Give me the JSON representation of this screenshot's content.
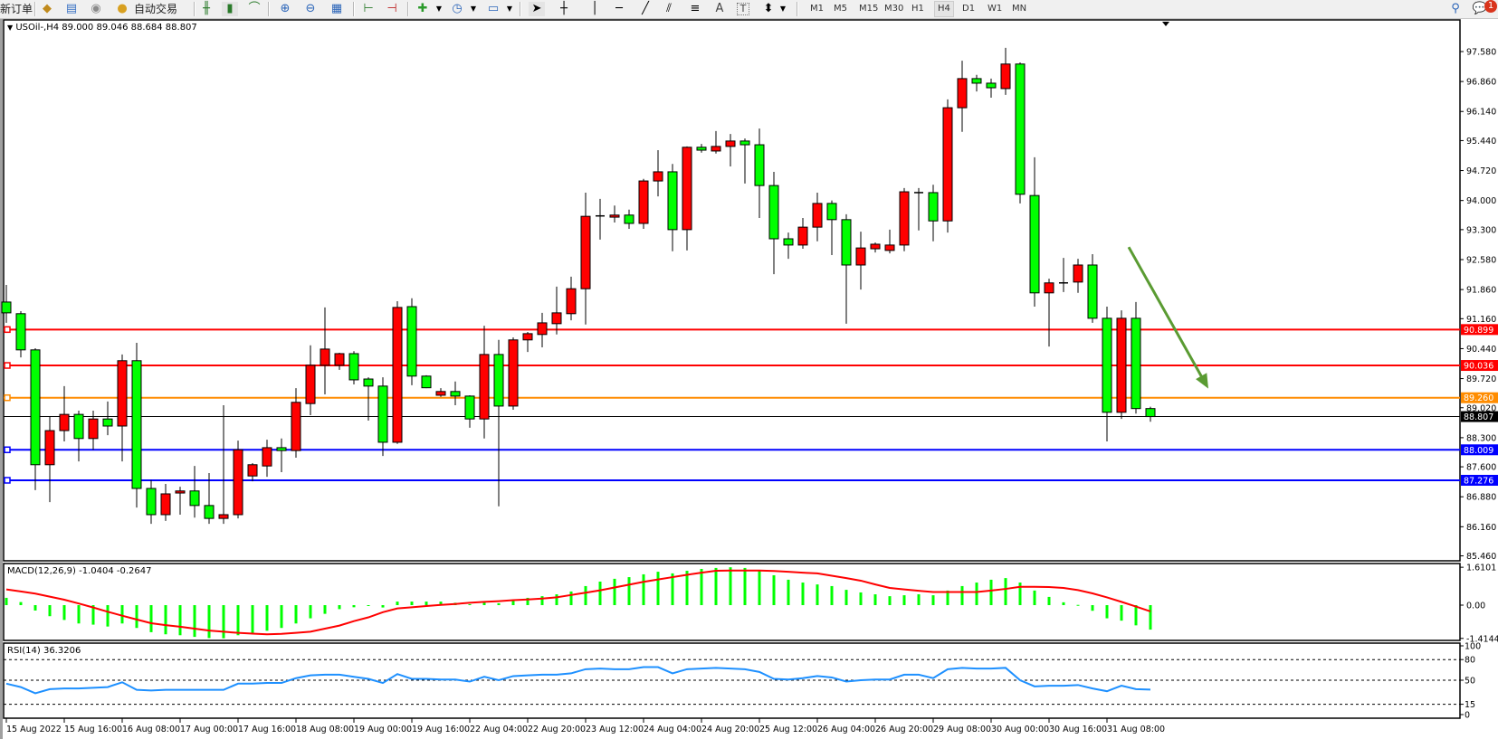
{
  "toolbar": {
    "new_order": "新订单",
    "auto_trading": "自动交易",
    "icons": [
      "market-watch-icon",
      "navigator-icon",
      "signals-icon",
      "auto-trading-icon",
      "bar-chart-icon",
      "candlestick-icon",
      "line-chart-icon",
      "zoom-in-icon",
      "zoom-out-icon",
      "tile-windows-icon",
      "chart-shift-icon",
      "autoscroll-icon",
      "indicators-icon",
      "periods-icon",
      "templates-icon",
      "cursor-icon",
      "crosshair-icon",
      "vertical-line-icon",
      "horizontal-line-icon",
      "trendline-icon",
      "equidistant-channel-icon",
      "fibonacci-icon",
      "text-icon",
      "text-label-icon",
      "arrows-icon"
    ],
    "text_tool": "A",
    "label_tool": "T",
    "timeframes": [
      "M1",
      "M5",
      "M15",
      "M30",
      "H1",
      "H4",
      "D1",
      "W1",
      "MN"
    ],
    "active_timeframe": "H4",
    "notification_count": "1"
  },
  "chart": {
    "info": "USOil-,H4  89.000 89.046 88.684 88.807",
    "macd_label": "MACD(12,26,9) -1.0404 -0.2647",
    "rsi_label": "RSI(14) 36.3206"
  },
  "chart_data": {
    "type": "candlestick",
    "symbol": "USOil-",
    "timeframe": "H4",
    "colors": {
      "bull": "#ff0000",
      "bear": "#00ff00",
      "wick": "#000000",
      "macd_hist": "#00ff00",
      "macd_signal": "#ff0000",
      "rsi": "#1e90ff",
      "arrow": "#5a9b32"
    },
    "price_ticks": [
      "97.580",
      "96.860",
      "96.140",
      "95.440",
      "94.720",
      "94.000",
      "93.300",
      "92.580",
      "91.860",
      "91.160",
      "90.440",
      "89.720",
      "89.020",
      "88.300",
      "87.600",
      "86.880",
      "86.160",
      "85.460"
    ],
    "ylim": [
      85.46,
      97.58
    ],
    "time_labels": [
      "15 Aug 2022",
      "15 Aug 16:00",
      "16 Aug 08:00",
      "17 Aug 00:00",
      "17 Aug 16:00",
      "18 Aug 08:00",
      "19 Aug 00:00",
      "19 Aug 16:00",
      "22 Aug 04:00",
      "22 Aug 20:00",
      "23 Aug 12:00",
      "24 Aug 04:00",
      "24 Aug 20:00",
      "25 Aug 12:00",
      "26 Aug 04:00",
      "26 Aug 20:00",
      "29 Aug 08:00",
      "30 Aug 00:00",
      "30 Aug 16:00",
      "31 Aug 08:00"
    ],
    "ohlc_fields": [
      "open",
      "high",
      "low",
      "close"
    ],
    "candles": [
      [
        91.56,
        91.97,
        91.06,
        91.3
      ],
      [
        91.28,
        91.34,
        90.23,
        90.41
      ],
      [
        90.41,
        90.45,
        87.04,
        87.65
      ],
      [
        87.65,
        88.82,
        86.75,
        88.47
      ],
      [
        88.47,
        89.54,
        88.21,
        88.86
      ],
      [
        88.86,
        88.95,
        87.73,
        88.28
      ],
      [
        88.28,
        88.95,
        88.01,
        88.75
      ],
      [
        88.75,
        89.17,
        88.36,
        88.58
      ],
      [
        88.58,
        90.3,
        87.73,
        90.15
      ],
      [
        90.15,
        90.58,
        86.62,
        87.08
      ],
      [
        87.08,
        87.28,
        86.23,
        86.45
      ],
      [
        86.45,
        87.19,
        86.3,
        86.95
      ],
      [
        86.97,
        87.12,
        86.45,
        87.02
      ],
      [
        87.02,
        87.62,
        86.38,
        86.67
      ],
      [
        86.67,
        87.45,
        86.23,
        86.36
      ],
      [
        86.36,
        89.08,
        86.23,
        86.45
      ],
      [
        86.45,
        88.23,
        86.36,
        88.01
      ],
      [
        87.38,
        87.69,
        87.25,
        87.65
      ],
      [
        87.62,
        88.25,
        87.36,
        88.06
      ],
      [
        88.06,
        88.28,
        87.47,
        87.99
      ],
      [
        87.99,
        89.49,
        87.82,
        89.15
      ],
      [
        89.12,
        90.52,
        88.84,
        90.04
      ],
      [
        90.04,
        91.43,
        89.34,
        90.43
      ],
      [
        90.04,
        90.34,
        89.93,
        90.32
      ],
      [
        90.32,
        90.38,
        89.58,
        89.69
      ],
      [
        89.71,
        89.75,
        88.71,
        89.54
      ],
      [
        89.54,
        89.75,
        87.86,
        88.19
      ],
      [
        88.19,
        91.58,
        88.15,
        91.43
      ],
      [
        91.45,
        91.65,
        89.56,
        89.78
      ],
      [
        89.78,
        89.8,
        89.49,
        89.5
      ],
      [
        89.32,
        89.49,
        89.28,
        89.41
      ],
      [
        89.41,
        89.65,
        89.08,
        89.3
      ],
      [
        89.3,
        89.32,
        88.54,
        88.75
      ],
      [
        88.75,
        90.99,
        88.28,
        90.3
      ],
      [
        90.3,
        90.65,
        86.65,
        89.06
      ],
      [
        89.06,
        90.71,
        88.97,
        90.65
      ],
      [
        90.65,
        90.84,
        90.36,
        90.8
      ],
      [
        90.78,
        91.3,
        90.47,
        91.06
      ],
      [
        91.04,
        91.93,
        90.78,
        91.3
      ],
      [
        91.28,
        92.17,
        91.12,
        91.88
      ],
      [
        91.88,
        94.19,
        91.02,
        93.62
      ],
      [
        93.63,
        94.04,
        93.06,
        93.63
      ],
      [
        93.6,
        93.88,
        93.47,
        93.65
      ],
      [
        93.65,
        93.78,
        93.32,
        93.45
      ],
      [
        93.45,
        94.52,
        93.32,
        94.47
      ],
      [
        94.47,
        95.21,
        94.1,
        94.69
      ],
      [
        94.69,
        94.88,
        92.78,
        93.3
      ],
      [
        93.3,
        95.3,
        92.8,
        95.28
      ],
      [
        95.28,
        95.36,
        95.15,
        95.21
      ],
      [
        95.19,
        95.67,
        95.13,
        95.3
      ],
      [
        95.3,
        95.6,
        94.82,
        95.43
      ],
      [
        95.43,
        95.49,
        94.41,
        95.34
      ],
      [
        95.34,
        95.73,
        93.58,
        94.36
      ],
      [
        94.36,
        94.69,
        92.23,
        93.08
      ],
      [
        93.08,
        93.23,
        92.6,
        92.93
      ],
      [
        92.93,
        93.58,
        92.84,
        93.36
      ],
      [
        93.36,
        94.19,
        93.02,
        93.93
      ],
      [
        93.93,
        94.0,
        92.69,
        93.54
      ],
      [
        93.54,
        93.67,
        91.04,
        92.45
      ],
      [
        92.45,
        93.25,
        91.86,
        92.86
      ],
      [
        92.84,
        92.99,
        92.75,
        92.95
      ],
      [
        92.8,
        93.3,
        92.73,
        92.93
      ],
      [
        92.93,
        94.3,
        92.78,
        94.21
      ],
      [
        94.19,
        94.3,
        93.28,
        94.19
      ],
      [
        94.19,
        94.38,
        93.02,
        93.51
      ],
      [
        93.51,
        96.43,
        93.23,
        96.23
      ],
      [
        96.23,
        97.36,
        95.65,
        96.93
      ],
      [
        96.93,
        97.02,
        96.62,
        96.82
      ],
      [
        96.82,
        96.93,
        96.47,
        96.71
      ],
      [
        96.69,
        97.67,
        96.54,
        97.28
      ],
      [
        97.28,
        97.32,
        93.93,
        94.15
      ],
      [
        94.12,
        95.04,
        91.45,
        91.78
      ],
      [
        91.78,
        92.12,
        90.49,
        92.02
      ],
      [
        92.02,
        92.62,
        91.8,
        92.02
      ],
      [
        92.04,
        92.6,
        91.78,
        92.45
      ],
      [
        92.45,
        92.71,
        91.06,
        91.17
      ],
      [
        91.17,
        91.45,
        88.21,
        88.91
      ],
      [
        88.91,
        91.36,
        88.75,
        91.17
      ],
      [
        91.17,
        91.56,
        88.88,
        89.0
      ],
      [
        89.0,
        89.046,
        88.684,
        88.807
      ]
    ],
    "horizontal_lines": [
      {
        "price": "90.899",
        "color": "#ff0000"
      },
      {
        "price": "90.036",
        "color": "#ff0000"
      },
      {
        "price": "89.260",
        "color": "#ff8c00"
      },
      {
        "price": "88.807",
        "color": "#000000"
      },
      {
        "price": "88.009",
        "color": "#0000ff"
      },
      {
        "price": "87.276",
        "color": "#0000ff"
      }
    ],
    "arrow": {
      "from": {
        "candle": 77.5,
        "price": 92.88
      },
      "to": {
        "candle": 83,
        "price": 89.48
      }
    },
    "macd": {
      "params": "12,26,9",
      "axis_ticks": [
        "1.6101",
        "0.00",
        "-1.4144"
      ],
      "ylim": [
        -1.4144,
        1.6101
      ],
      "histogram": [
        0.31,
        0.13,
        -0.23,
        -0.47,
        -0.63,
        -0.78,
        -0.83,
        -0.91,
        -0.78,
        -0.97,
        -1.15,
        -1.24,
        -1.28,
        -1.35,
        -1.4,
        -1.41,
        -1.28,
        -1.22,
        -1.09,
        -0.97,
        -0.78,
        -0.56,
        -0.37,
        -0.17,
        -0.09,
        -0.03,
        -0.1,
        0.15,
        0.15,
        0.15,
        0.15,
        0.1,
        0.04,
        0.15,
        0.08,
        0.18,
        0.31,
        0.38,
        0.46,
        0.58,
        0.81,
        1.0,
        1.12,
        1.19,
        1.31,
        1.42,
        1.35,
        1.46,
        1.54,
        1.58,
        1.61,
        1.58,
        1.46,
        1.27,
        1.08,
        0.96,
        0.88,
        0.81,
        0.65,
        0.54,
        0.46,
        0.38,
        0.42,
        0.46,
        0.42,
        0.62,
        0.81,
        0.96,
        1.08,
        1.15,
        0.96,
        0.62,
        0.35,
        0.12,
        0.01,
        -0.24,
        -0.56,
        -0.66,
        -0.86,
        -1.0404
      ],
      "signal": [
        0.67,
        0.58,
        0.49,
        0.36,
        0.23,
        0.07,
        -0.1,
        -0.28,
        -0.45,
        -0.61,
        -0.77,
        -0.85,
        -0.92,
        -1.0,
        -1.08,
        -1.13,
        -1.18,
        -1.21,
        -1.24,
        -1.22,
        -1.18,
        -1.13,
        -1.0,
        -0.87,
        -0.68,
        -0.52,
        -0.3,
        -0.14,
        -0.09,
        -0.04,
        0.01,
        0.05,
        0.1,
        0.14,
        0.17,
        0.21,
        0.24,
        0.28,
        0.33,
        0.43,
        0.53,
        0.63,
        0.75,
        0.87,
        0.99,
        1.09,
        1.19,
        1.29,
        1.38,
        1.46,
        1.47,
        1.47,
        1.47,
        1.45,
        1.42,
        1.38,
        1.35,
        1.25,
        1.15,
        1.04,
        0.88,
        0.73,
        0.67,
        0.61,
        0.56,
        0.56,
        0.56,
        0.56,
        0.62,
        0.69,
        0.78,
        0.78,
        0.77,
        0.73,
        0.64,
        0.5,
        0.33,
        0.14,
        -0.06,
        -0.2647
      ]
    },
    "rsi": {
      "period": 14,
      "axis_ticks": [
        "100",
        "80",
        "50",
        "15",
        "0"
      ],
      "levels": [
        80,
        50,
        15
      ],
      "values": [
        45,
        40,
        31,
        37,
        38,
        38,
        39,
        40,
        47,
        36,
        35,
        36,
        36,
        36,
        36,
        36,
        45,
        45,
        46,
        46,
        53,
        57,
        58,
        58,
        55,
        52,
        46,
        59,
        52,
        52,
        51,
        51,
        48,
        55,
        50,
        56,
        57,
        58,
        58,
        60,
        66,
        67,
        66,
        66,
        69,
        69,
        60,
        66,
        67,
        68,
        67,
        66,
        62,
        52,
        51,
        53,
        56,
        54,
        48,
        50,
        51,
        51,
        58,
        58,
        53,
        66,
        68,
        67,
        67,
        68,
        50,
        41,
        42,
        42,
        43,
        38,
        34,
        42,
        37,
        36.32
      ]
    }
  }
}
